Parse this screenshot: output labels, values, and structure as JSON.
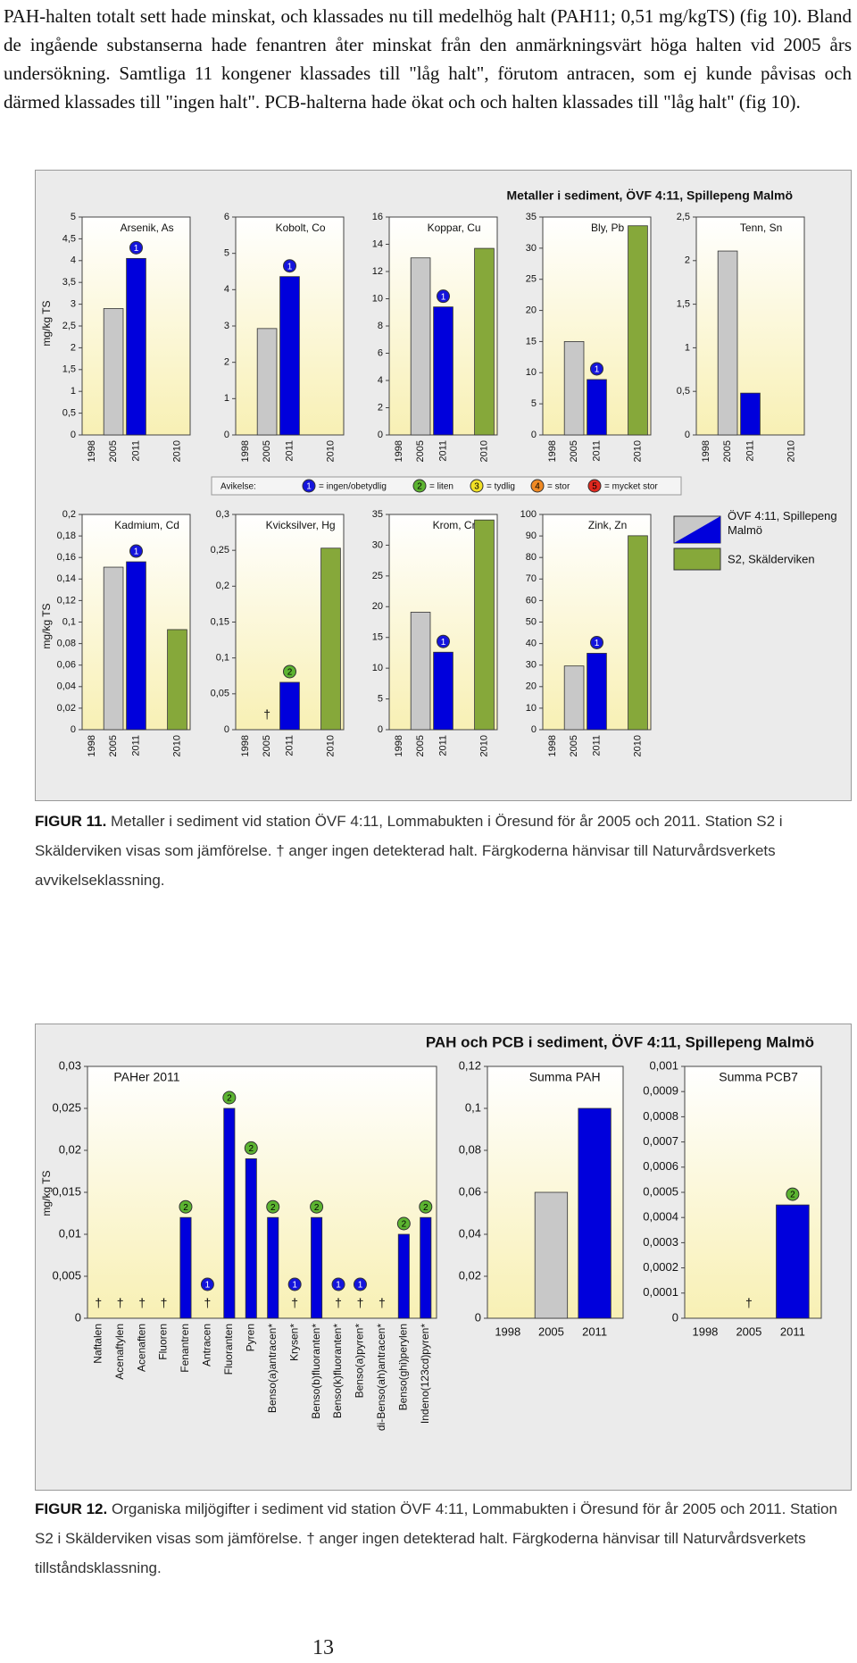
{
  "page": {
    "intro": "PAH-halten totalt sett hade minskat, och klassades nu till medelhög halt (PAH11; 0,51 mg/kgTS) (fig 10). Bland de ingående substanserna hade fenantren åter minskat från den anmärkningsvärt höga halten vid 2005 års undersökning. Samtliga 11 kongener klassades till \"låg halt\", förutom antracen, som ej kunde påvisas och därmed klassades till \"ingen halt\". PCB-halterna hade ökat och och halten klassades till \"låg halt\" (fig 10).",
    "figure11": {
      "title": "Metaller i sediment, ÖVF 4:11, Spillepeng Malmö",
      "ylabel": "mg/kg TS",
      "deviation": {
        "label": "Avikelse:",
        "items": [
          {
            "number": "1",
            "text": "= ingen/obetydlig",
            "color": "#1414dc"
          },
          {
            "number": "2",
            "text": "= liten",
            "color": "#5cb431"
          },
          {
            "number": "3",
            "text": "= tydlig",
            "color": "#f2e126"
          },
          {
            "number": "4",
            "text": "= stor",
            "color": "#f08a24"
          },
          {
            "number": "5",
            "text": "= mycket stor",
            "color": "#e0281e"
          }
        ]
      },
      "legend": [
        {
          "name": "ÖVF 4:11, Spillepeng Malmö",
          "colors": [
            "#c8c8c8",
            "#0000dc"
          ]
        },
        {
          "name": "S2, Skälderviken",
          "color": "#86a83a"
        }
      ],
      "caption": {
        "label": "FIGUR 11.",
        "text": "Metaller i sediment vid station ÖVF 4:11, Lommabukten i Öresund för år 2005 och 2011. Station S2 i Skälderviken  visas som jämförelse. † anger ingen detekterad halt. Färgkoderna hänvisar till Naturvårdsverkets avvikelseklassning."
      }
    },
    "figure12": {
      "title": "PAH och PCB i sediment, ÖVF 4:11, Spillepeng Malmö",
      "ylabel": "mg/kg TS",
      "caption": {
        "label": "FIGUR 12.",
        "text": "Organiska miljögifter i sediment vid station ÖVF 4:11, Lommabukten i Öresund för år 2005 och 2011. Station S2 i Skälderviken  visas som jämförelse. † anger ingen detekterad halt. Färgkoderna hänvisar till Naturvårdsverkets tillståndsklassning."
      }
    },
    "page_number": "13"
  },
  "chart_data": [
    {
      "type": "bar",
      "title": "Arsenik, As",
      "categories": [
        "1998",
        "2005",
        "2011",
        "2010"
      ],
      "values": [
        null,
        2.9,
        4.05,
        null
      ],
      "colors": [
        "#c8c8c8",
        "#c8c8c8",
        "#0000dc",
        "#86a83a"
      ],
      "class_labels": [
        null,
        null,
        "1",
        null
      ],
      "markers": [
        null,
        null,
        null,
        null
      ],
      "ylim": [
        0,
        5
      ],
      "yticks": [
        0,
        {
          "value": 0.5,
          "label": "0,5"
        },
        1,
        {
          "value": 1.5,
          "label": "1,5"
        },
        2,
        {
          "value": 2.5,
          "label": "2,5"
        },
        3,
        {
          "value": 3.5,
          "label": "3,5"
        },
        4,
        {
          "value": 4.5,
          "label": "4,5"
        },
        5
      ]
    },
    {
      "type": "bar",
      "title": "Kobolt, Co",
      "categories": [
        "1998",
        "2005",
        "2011",
        "2010"
      ],
      "values": [
        null,
        2.93,
        4.36,
        null
      ],
      "colors": [
        "#c8c8c8",
        "#c8c8c8",
        "#0000dc",
        "#86a83a"
      ],
      "class_labels": [
        null,
        null,
        "1",
        null
      ],
      "markers": [
        null,
        null,
        null,
        null
      ],
      "ylim": [
        0,
        6
      ],
      "yticks": [
        0,
        1,
        2,
        3,
        4,
        5,
        6
      ]
    },
    {
      "type": "bar",
      "title": "Koppar, Cu",
      "categories": [
        "1998",
        "2005",
        "2011",
        "2010"
      ],
      "values": [
        null,
        13,
        9.4,
        13.7
      ],
      "colors": [
        "#c8c8c8",
        "#c8c8c8",
        "#0000dc",
        "#86a83a"
      ],
      "class_labels": [
        null,
        null,
        "1",
        null
      ],
      "markers": [
        null,
        null,
        null,
        null
      ],
      "ylim": [
        0,
        16
      ],
      "yticks": [
        0,
        2,
        4,
        6,
        8,
        10,
        12,
        14,
        16
      ]
    },
    {
      "type": "bar",
      "title": "Bly, Pb",
      "categories": [
        "1998",
        "2005",
        "2011",
        "2010"
      ],
      "values": [
        null,
        15,
        8.9,
        33.6
      ],
      "colors": [
        "#c8c8c8",
        "#c8c8c8",
        "#0000dc",
        "#86a83a"
      ],
      "class_labels": [
        null,
        null,
        "1",
        null
      ],
      "markers": [
        null,
        null,
        null,
        null
      ],
      "ylim": [
        0,
        35
      ],
      "yticks": [
        0,
        5,
        10,
        15,
        20,
        25,
        30,
        35
      ]
    },
    {
      "type": "bar",
      "title": "Tenn, Sn",
      "categories": [
        "1998",
        "2005",
        "2011",
        "2010"
      ],
      "values": [
        null,
        2.11,
        0.48,
        null
      ],
      "colors": [
        "#c8c8c8",
        "#c8c8c8",
        "#0000dc",
        "#86a83a"
      ],
      "class_labels": [
        null,
        null,
        null,
        null
      ],
      "markers": [
        null,
        null,
        null,
        null
      ],
      "ylim": [
        0,
        2.5
      ],
      "yticks": [
        0,
        {
          "value": 0.5,
          "label": "0,5"
        },
        1,
        {
          "value": 1.5,
          "label": "1,5"
        },
        2,
        {
          "value": 2.5,
          "label": "2,5"
        }
      ]
    },
    {
      "type": "bar",
      "title": "Kadmium, Cd",
      "categories": [
        "1998",
        "2005",
        "2011",
        "2010"
      ],
      "values": [
        null,
        0.151,
        0.156,
        0.093
      ],
      "colors": [
        "#c8c8c8",
        "#c8c8c8",
        "#0000dc",
        "#86a83a"
      ],
      "class_labels": [
        null,
        null,
        "1",
        null
      ],
      "markers": [
        null,
        null,
        null,
        null
      ],
      "ylim": [
        0,
        0.2
      ],
      "yticks": [
        0,
        {
          "value": 0.02,
          "label": "0,02"
        },
        {
          "value": 0.04,
          "label": "0,04"
        },
        {
          "value": 0.06,
          "label": "0,06"
        },
        {
          "value": 0.08,
          "label": "0,08"
        },
        {
          "value": 0.1,
          "label": "0,1"
        },
        {
          "value": 0.12,
          "label": "0,12"
        },
        {
          "value": 0.14,
          "label": "0,14"
        },
        {
          "value": 0.16,
          "label": "0,16"
        },
        {
          "value": 0.18,
          "label": "0,18"
        },
        {
          "value": 0.2,
          "label": "0,2"
        }
      ]
    },
    {
      "type": "bar",
      "title": "Kvicksilver, Hg",
      "categories": [
        "1998",
        "2005",
        "2011",
        "2010"
      ],
      "values": [
        null,
        null,
        0.066,
        0.253
      ],
      "colors": [
        "#c8c8c8",
        "#c8c8c8",
        "#0000dc",
        "#86a83a"
      ],
      "class_labels": [
        null,
        null,
        "2",
        null
      ],
      "markers": [
        null,
        "†",
        null,
        null
      ],
      "ylim": [
        0,
        0.3
      ],
      "yticks": [
        0,
        {
          "value": 0.05,
          "label": "0,05"
        },
        {
          "value": 0.1,
          "label": "0,1"
        },
        {
          "value": 0.15,
          "label": "0,15"
        },
        {
          "value": 0.2,
          "label": "0,2"
        },
        {
          "value": 0.25,
          "label": "0,25"
        },
        {
          "value": 0.3,
          "label": "0,3"
        }
      ]
    },
    {
      "type": "bar",
      "title": "Krom, Cr",
      "categories": [
        "1998",
        "2005",
        "2011",
        "2010"
      ],
      "values": [
        null,
        19.1,
        12.6,
        34.1
      ],
      "colors": [
        "#c8c8c8",
        "#c8c8c8",
        "#0000dc",
        "#86a83a"
      ],
      "class_labels": [
        null,
        null,
        "1",
        null
      ],
      "markers": [
        null,
        null,
        null,
        null
      ],
      "ylim": [
        0,
        35
      ],
      "yticks": [
        0,
        5,
        10,
        15,
        20,
        25,
        30,
        35
      ]
    },
    {
      "type": "bar",
      "title": "Zink, Zn",
      "categories": [
        "1998",
        "2005",
        "2011",
        "2010"
      ],
      "values": [
        null,
        29.6,
        35.5,
        90.1
      ],
      "colors": [
        "#c8c8c8",
        "#c8c8c8",
        "#0000dc",
        "#86a83a"
      ],
      "class_labels": [
        null,
        null,
        "1",
        null
      ],
      "markers": [
        null,
        null,
        null,
        null
      ],
      "ylim": [
        0,
        100
      ],
      "yticks": [
        0,
        10,
        20,
        30,
        40,
        50,
        60,
        70,
        80,
        90,
        100
      ]
    },
    {
      "type": "bar",
      "title": "PAHer 2011",
      "categories": [
        "Naftalen",
        "Acenaftylen",
        "Acenaften",
        "Fluoren",
        "Fenantren",
        "Antracen",
        "Fluoranten",
        "Pyren",
        "Benso(a)antracen*",
        "Krysen*",
        "Benso(b)fluoranten*",
        "Benso(k)fluoranten*",
        "Benso(a)pyren*",
        "di-Benso(ah)antracen*",
        "Benso(ghi)perylen",
        "Indeno(123cd)pyren*"
      ],
      "values": [
        null,
        null,
        null,
        null,
        0.012,
        null,
        0.025,
        0.019,
        0.012,
        null,
        0.012,
        null,
        null,
        null,
        0.01,
        0.012
      ],
      "colors": [
        "#0000dc",
        "#0000dc",
        "#0000dc",
        "#0000dc",
        "#0000dc",
        "#0000dc",
        "#0000dc",
        "#0000dc",
        "#0000dc",
        "#0000dc",
        "#0000dc",
        "#0000dc",
        "#0000dc",
        "#0000dc",
        "#0000dc",
        "#0000dc"
      ],
      "class_labels": [
        null,
        null,
        null,
        null,
        "2",
        "1",
        "2",
        "2",
        "2",
        "1",
        "2",
        "1",
        "1",
        null,
        "2",
        "2"
      ],
      "markers": [
        "†",
        "†",
        "†",
        "†",
        null,
        "†",
        null,
        null,
        null,
        "†",
        null,
        "†",
        "†",
        "†",
        null,
        null
      ],
      "ylim": [
        0,
        0.03
      ],
      "yticks": [
        0,
        {
          "value": 0.005,
          "label": "0,005"
        },
        {
          "value": 0.01,
          "label": "0,01"
        },
        {
          "value": 0.015,
          "label": "0,015"
        },
        {
          "value": 0.02,
          "label": "0,02"
        },
        {
          "value": 0.025,
          "label": "0,025"
        },
        {
          "value": 0.03,
          "label": "0,03"
        }
      ]
    },
    {
      "type": "bar",
      "title": "Summa PAH",
      "categories": [
        "1998",
        "2005",
        "2011"
      ],
      "values": [
        null,
        0.06,
        0.1
      ],
      "colors": [
        "#c8c8c8",
        "#c8c8c8",
        "#0000dc"
      ],
      "class_labels": [
        null,
        null,
        null
      ],
      "markers": [
        null,
        null,
        null
      ],
      "ylim": [
        0,
        0.12
      ],
      "yticks": [
        0,
        {
          "value": 0.02,
          "label": "0,02"
        },
        {
          "value": 0.04,
          "label": "0,04"
        },
        {
          "value": 0.06,
          "label": "0,06"
        },
        {
          "value": 0.08,
          "label": "0,08"
        },
        {
          "value": 0.1,
          "label": "0,1"
        },
        {
          "value": 0.12,
          "label": "0,12"
        }
      ]
    },
    {
      "type": "bar",
      "title": "Summa PCB7",
      "categories": [
        "1998",
        "2005",
        "2011"
      ],
      "values": [
        null,
        null,
        0.00045
      ],
      "colors": [
        "#c8c8c8",
        "#c8c8c8",
        "#0000dc"
      ],
      "class_labels": [
        null,
        null,
        "2"
      ],
      "markers": [
        null,
        "†",
        null
      ],
      "ylim": [
        0,
        0.001
      ],
      "yticks": [
        0,
        {
          "value": 0.0001,
          "label": "0,0001"
        },
        {
          "value": 0.0002,
          "label": "0,0002"
        },
        {
          "value": 0.0003,
          "label": "0,0003"
        },
        {
          "value": 0.0004,
          "label": "0,0004"
        },
        {
          "value": 0.0005,
          "label": "0,0005"
        },
        {
          "value": 0.0006,
          "label": "0,0006"
        },
        {
          "value": 0.0007,
          "label": "0,0007"
        },
        {
          "value": 0.0008,
          "label": "0,0008"
        },
        {
          "value": 0.0009,
          "label": "0,0009"
        },
        {
          "value": 0.001,
          "label": "0,001"
        }
      ]
    }
  ]
}
